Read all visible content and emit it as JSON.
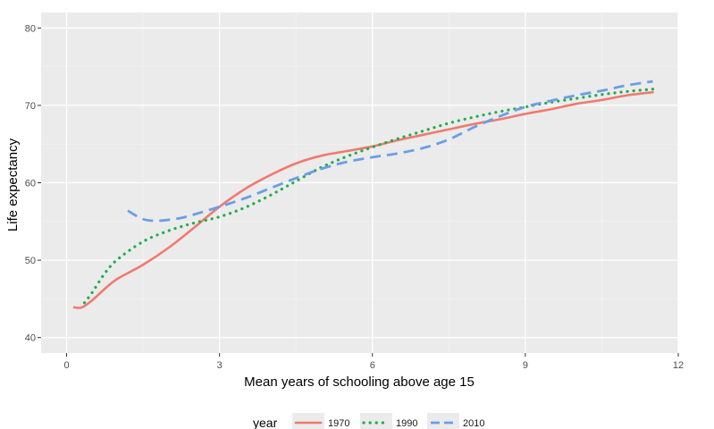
{
  "chart_data": {
    "type": "line",
    "title": "",
    "xlabel": "Mean years of schooling above age 15",
    "ylabel": "Life expectancy",
    "xlim": [
      -0.5,
      12
    ],
    "ylim": [
      38,
      82
    ],
    "x_ticks": [
      0,
      3,
      6,
      9,
      12
    ],
    "y_ticks": [
      40,
      50,
      60,
      70,
      80
    ],
    "x_tick_labels": [
      "0",
      "3",
      "6",
      "9",
      "12"
    ],
    "y_tick_labels": [
      "40",
      "50",
      "60",
      "70",
      "80"
    ],
    "grid": true,
    "legend": {
      "title": "year",
      "position": "bottom"
    },
    "series": [
      {
        "name": "1970",
        "color": "#f07a6e",
        "dash": "solid",
        "points": [
          [
            0.15,
            43.9
          ],
          [
            0.3,
            43.9
          ],
          [
            0.5,
            44.8
          ],
          [
            0.75,
            46.3
          ],
          [
            1.0,
            47.6
          ],
          [
            1.5,
            49.4
          ],
          [
            2.0,
            51.6
          ],
          [
            2.5,
            54.2
          ],
          [
            3.0,
            56.9
          ],
          [
            3.5,
            59.2
          ],
          [
            4.0,
            61.0
          ],
          [
            4.5,
            62.5
          ],
          [
            5.0,
            63.5
          ],
          [
            5.5,
            64.1
          ],
          [
            6.0,
            64.7
          ],
          [
            6.5,
            65.5
          ],
          [
            7.0,
            66.2
          ],
          [
            7.5,
            66.9
          ],
          [
            8.0,
            67.6
          ],
          [
            8.5,
            68.2
          ],
          [
            9.0,
            68.9
          ],
          [
            9.5,
            69.5
          ],
          [
            10.0,
            70.2
          ],
          [
            10.5,
            70.7
          ],
          [
            11.0,
            71.3
          ],
          [
            11.5,
            71.7
          ]
        ]
      },
      {
        "name": "1990",
        "color": "#1fad4e",
        "dash": "dotted",
        "points": [
          [
            0.35,
            44.5
          ],
          [
            0.5,
            45.8
          ],
          [
            0.75,
            48.3
          ],
          [
            1.0,
            50.1
          ],
          [
            1.5,
            52.4
          ],
          [
            2.0,
            53.8
          ],
          [
            2.5,
            54.8
          ],
          [
            3.0,
            55.6
          ],
          [
            3.5,
            56.8
          ],
          [
            4.0,
            58.4
          ],
          [
            4.5,
            60.2
          ],
          [
            5.0,
            62.0
          ],
          [
            5.5,
            63.4
          ],
          [
            6.0,
            64.6
          ],
          [
            6.5,
            65.7
          ],
          [
            7.0,
            66.7
          ],
          [
            7.5,
            67.7
          ],
          [
            8.0,
            68.5
          ],
          [
            8.5,
            69.2
          ],
          [
            9.0,
            69.8
          ],
          [
            9.5,
            70.4
          ],
          [
            10.0,
            70.9
          ],
          [
            10.5,
            71.4
          ],
          [
            11.0,
            71.8
          ],
          [
            11.5,
            72.1
          ]
        ]
      },
      {
        "name": "2010",
        "color": "#6a9ee8",
        "dash": "dashed",
        "points": [
          [
            1.2,
            56.4
          ],
          [
            1.5,
            55.3
          ],
          [
            1.8,
            55.1
          ],
          [
            2.2,
            55.4
          ],
          [
            2.5,
            55.9
          ],
          [
            3.0,
            56.9
          ],
          [
            3.5,
            58.0
          ],
          [
            4.0,
            59.3
          ],
          [
            4.5,
            60.6
          ],
          [
            5.0,
            61.8
          ],
          [
            5.5,
            62.7
          ],
          [
            6.0,
            63.3
          ],
          [
            6.5,
            63.8
          ],
          [
            7.0,
            64.5
          ],
          [
            7.5,
            65.6
          ],
          [
            8.0,
            67.2
          ],
          [
            8.5,
            68.6
          ],
          [
            9.0,
            69.8
          ],
          [
            9.5,
            70.6
          ],
          [
            10.0,
            71.3
          ],
          [
            10.5,
            71.9
          ],
          [
            11.0,
            72.6
          ],
          [
            11.5,
            73.1
          ]
        ]
      }
    ]
  }
}
